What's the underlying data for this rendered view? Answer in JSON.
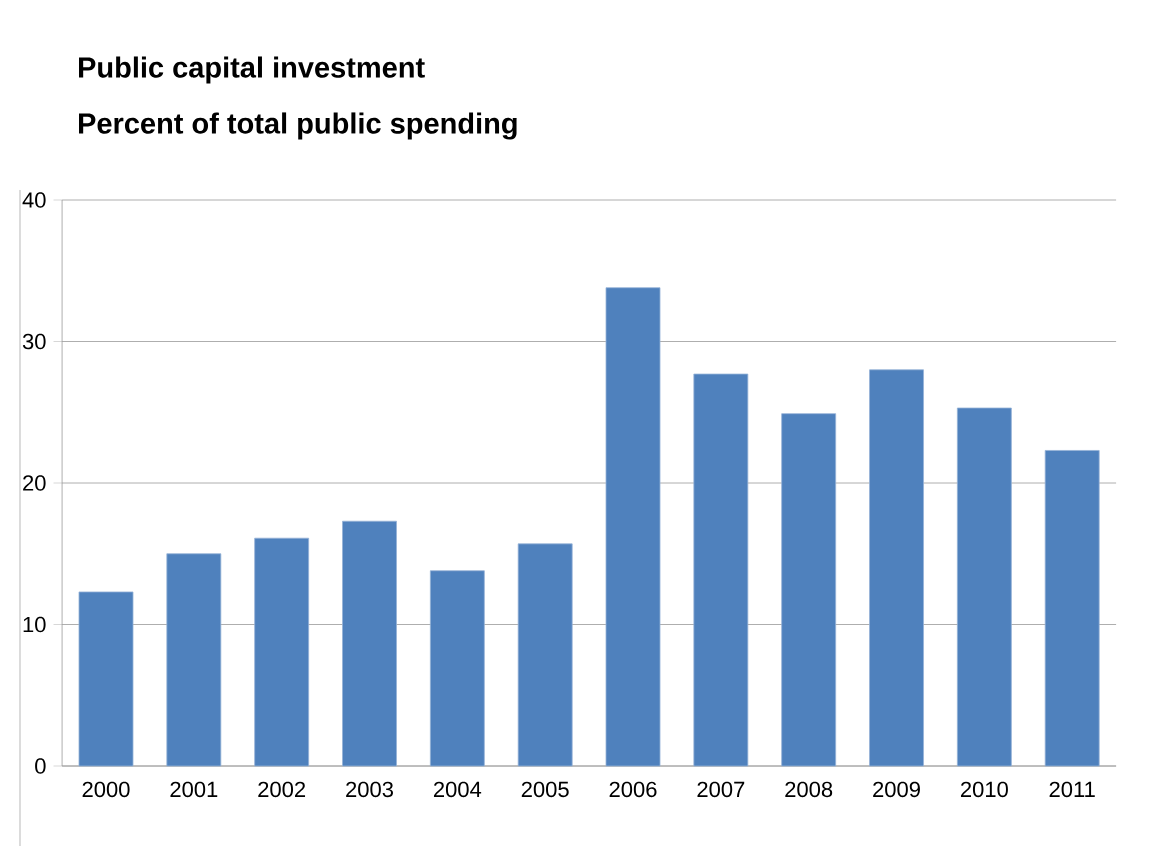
{
  "chart_data": {
    "type": "bar",
    "title": "Public capital investment",
    "subtitle": "Percent of total public spending",
    "categories": [
      "2000",
      "2001",
      "2002",
      "2003",
      "2004",
      "2005",
      "2006",
      "2007",
      "2008",
      "2009",
      "2010",
      "2011"
    ],
    "values": [
      12.3,
      15.0,
      16.1,
      17.3,
      13.8,
      15.7,
      33.8,
      27.7,
      24.9,
      28.0,
      25.3,
      22.3
    ],
    "color": "#4f81bd",
    "ylim": [
      0,
      40
    ],
    "yticks": [
      0,
      10,
      20,
      30,
      40
    ],
    "grid": "y"
  }
}
